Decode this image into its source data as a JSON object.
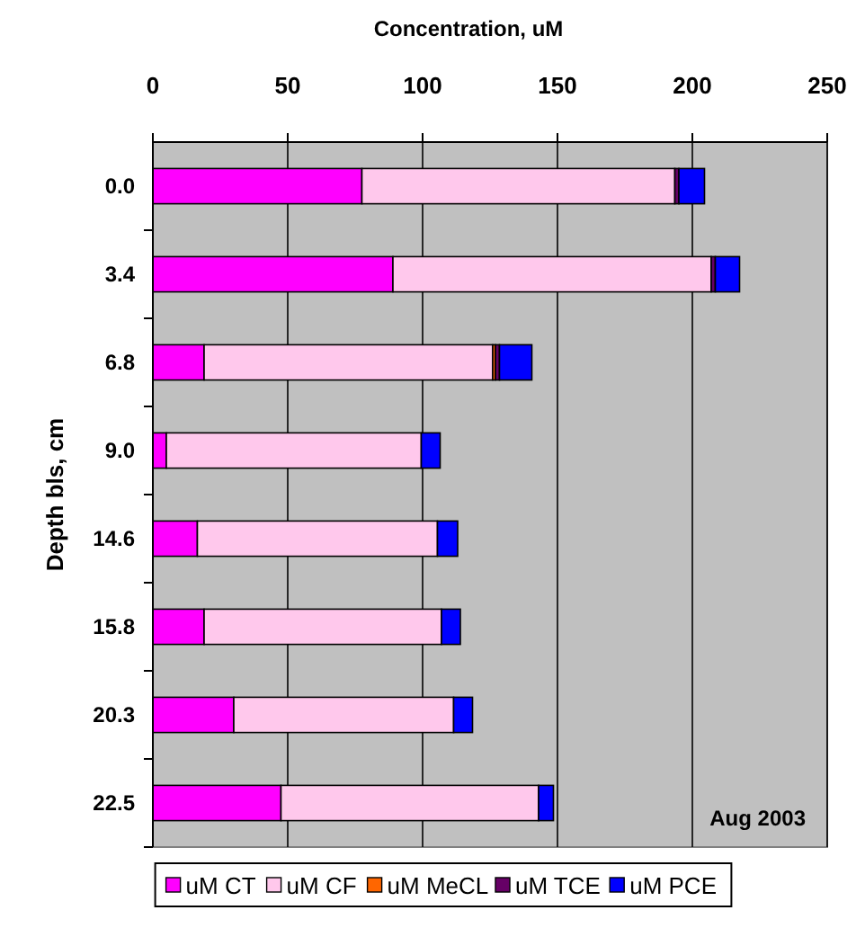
{
  "chart_data": {
    "type": "bar",
    "orientation": "horizontal",
    "stacked": true,
    "xlabel": "Concentration, uM",
    "ylabel": "Depth bls, cm",
    "categories": [
      "0.0",
      "3.4",
      "6.8",
      "9.0",
      "14.6",
      "15.8",
      "20.3",
      "22.5"
    ],
    "series": [
      {
        "name": "uM CT",
        "color": "#ff00ff",
        "values": [
          77.5,
          89,
          19,
          5,
          16.5,
          19,
          30,
          47.5
        ]
      },
      {
        "name": "uM CF",
        "color": "#ffc8ec",
        "values": [
          116,
          118,
          107,
          94.5,
          89,
          88,
          81.5,
          95.5
        ]
      },
      {
        "name": "uM MeCL",
        "color": "#ff6600",
        "values": [
          0,
          0,
          1,
          0,
          0,
          0,
          0,
          0
        ]
      },
      {
        "name": "uM TCE",
        "color": "#660066",
        "values": [
          1.5,
          1.5,
          1.5,
          0,
          0,
          0,
          0,
          0
        ]
      },
      {
        "name": "uM PCE",
        "color": "#0000ff",
        "values": [
          9.5,
          9,
          12,
          7,
          7.5,
          7,
          7,
          5.5
        ]
      }
    ],
    "xlim": [
      0,
      250
    ],
    "xticks": [
      0,
      50,
      100,
      150,
      200,
      250
    ],
    "grid": "x",
    "legend": "bottom",
    "annotations": [
      "Aug 2003"
    ]
  }
}
